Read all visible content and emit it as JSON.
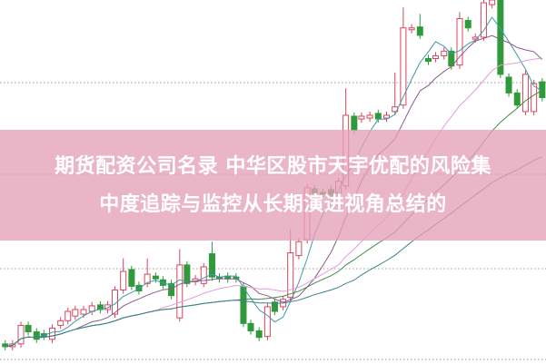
{
  "banner": {
    "title_line1": "期货配资公司名录 中华区股市天宇优配的风险集",
    "title_line2": "中度追踪与监控从长期演进视角总结的",
    "background": "#e4a0b6"
  },
  "chart": {
    "type": "candlestick",
    "up_color": "#d9455f",
    "down_color": "#2e9a3a",
    "ma_colors": [
      "#3d9aa8",
      "#8a5a8a",
      "#e39ae0",
      "#3f8a4a",
      "#3d7f8f"
    ]
  }
}
